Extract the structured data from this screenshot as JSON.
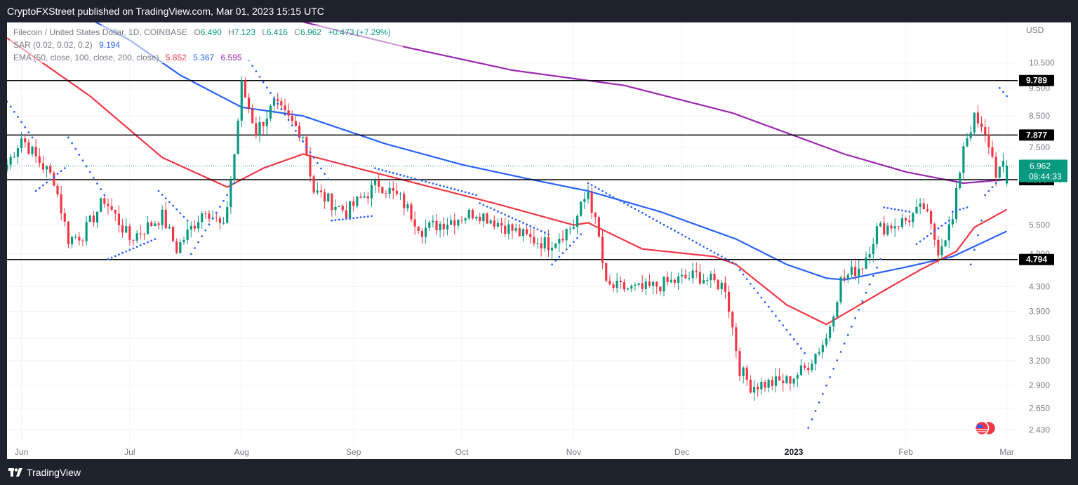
{
  "publisher": "CryptoFXStreet published on TradingView.com, Mar 01, 2023 15:15 UTC",
  "brand": "TradingView",
  "legend": {
    "symbol": "Filecoin / United States Dollar, 1D, COINBASE",
    "o_label": "O",
    "o_value": "6.490",
    "h_label": "H",
    "h_value": "7.123",
    "l_label": "L",
    "l_value": "6.416",
    "c_label": "C",
    "c_value": "6.962",
    "change": "+0.473 (+7.29%)",
    "sar_label": "SAR (0.02, 0.02, 0.2)",
    "sar_value": "9.194",
    "ema_label": "EMA (50, close, 100, close, 200, close)",
    "ema50_value": "5.852",
    "ema100_value": "5.367",
    "ema200_value": "6.595"
  },
  "colors": {
    "up": "#089981",
    "down": "#f23645",
    "ema50": "#f23645",
    "ema100": "#2962ff",
    "ema200": "#9c27b0",
    "sar": "#2962ff",
    "hline": "#000000",
    "text": "#131722",
    "axis_text": "#787b86"
  },
  "chart_data": {
    "type": "candlestick",
    "title": "Filecoin / United States Dollar, 1D, COINBASE",
    "currency": "USD",
    "y_scale": "log",
    "ylim": [
      2.3,
      12.0
    ],
    "x_start": "2022-05-28",
    "x_end": "2023-03-04",
    "x_ticks": [
      {
        "date": "2022-06-01",
        "label": "Jun",
        "bold": false
      },
      {
        "date": "2022-07-01",
        "label": "Jul",
        "bold": false
      },
      {
        "date": "2022-08-01",
        "label": "Aug",
        "bold": false
      },
      {
        "date": "2022-09-01",
        "label": "Sep",
        "bold": false
      },
      {
        "date": "2022-10-01",
        "label": "Oct",
        "bold": false
      },
      {
        "date": "2022-11-01",
        "label": "Nov",
        "bold": false
      },
      {
        "date": "2022-12-01",
        "label": "Dec",
        "bold": false
      },
      {
        "date": "2023-01-01",
        "label": "2023",
        "bold": true
      },
      {
        "date": "2023-02-01",
        "label": "Feb",
        "bold": false
      },
      {
        "date": "2023-03-01",
        "label": "Mar",
        "bold": false
      }
    ],
    "y_ticks": [
      "10.500",
      "9.500",
      "8.500",
      "7.500",
      "5.500",
      "4.900",
      "4.300",
      "3.900",
      "3.500",
      "3.200",
      "2.900",
      "2.650",
      "2.430"
    ],
    "horizontal_levels": [
      {
        "value": 9.789,
        "label": "9.789"
      },
      {
        "value": 7.877,
        "label": "7.877"
      },
      {
        "value": 6.59,
        "label": "6.590"
      },
      {
        "value": 4.794,
        "label": "4.794"
      }
    ],
    "last_price": {
      "value": 6.962,
      "label": "6.962",
      "countdown": "08:44:33"
    },
    "anchors": [
      {
        "date": "2022-05-28",
        "price": 7.0
      },
      {
        "date": "2022-06-01",
        "price": 7.8
      },
      {
        "date": "2022-06-05",
        "price": 7.2
      },
      {
        "date": "2022-06-10",
        "price": 6.6
      },
      {
        "date": "2022-06-14",
        "price": 5.2
      },
      {
        "date": "2022-06-18",
        "price": 5.3
      },
      {
        "date": "2022-06-24",
        "price": 6.1
      },
      {
        "date": "2022-07-01",
        "price": 5.2
      },
      {
        "date": "2022-07-10",
        "price": 5.7
      },
      {
        "date": "2022-07-14",
        "price": 5.0
      },
      {
        "date": "2022-07-22",
        "price": 5.9
      },
      {
        "date": "2022-07-27",
        "price": 5.4
      },
      {
        "date": "2022-07-30",
        "price": 7.3
      },
      {
        "date": "2022-08-01",
        "price": 9.6
      },
      {
        "date": "2022-08-05",
        "price": 8.0
      },
      {
        "date": "2022-08-10",
        "price": 8.9
      },
      {
        "date": "2022-08-18",
        "price": 7.9
      },
      {
        "date": "2022-08-21",
        "price": 6.3
      },
      {
        "date": "2022-08-30",
        "price": 5.8
      },
      {
        "date": "2022-09-08",
        "price": 6.5
      },
      {
        "date": "2022-09-14",
        "price": 6.1
      },
      {
        "date": "2022-09-20",
        "price": 5.4
      },
      {
        "date": "2022-10-05",
        "price": 5.8
      },
      {
        "date": "2022-10-20",
        "price": 5.2
      },
      {
        "date": "2022-10-25",
        "price": 5.1
      },
      {
        "date": "2022-11-01",
        "price": 5.5
      },
      {
        "date": "2022-11-05",
        "price": 6.3
      },
      {
        "date": "2022-11-08",
        "price": 5.2
      },
      {
        "date": "2022-11-10",
        "price": 4.3
      },
      {
        "date": "2022-11-20",
        "price": 4.25
      },
      {
        "date": "2022-12-05",
        "price": 4.5
      },
      {
        "date": "2022-12-13",
        "price": 4.3
      },
      {
        "date": "2022-12-17",
        "price": 3.1
      },
      {
        "date": "2022-12-20",
        "price": 2.9
      },
      {
        "date": "2022-12-30",
        "price": 2.95
      },
      {
        "date": "2023-01-04",
        "price": 3.1
      },
      {
        "date": "2023-01-10",
        "price": 3.5
      },
      {
        "date": "2023-01-14",
        "price": 4.4
      },
      {
        "date": "2023-01-20",
        "price": 4.7
      },
      {
        "date": "2023-01-24",
        "price": 5.4
      },
      {
        "date": "2023-02-01",
        "price": 5.6
      },
      {
        "date": "2023-02-06",
        "price": 5.9
      },
      {
        "date": "2023-02-10",
        "price": 5.0
      },
      {
        "date": "2023-02-14",
        "price": 5.6
      },
      {
        "date": "2023-02-17",
        "price": 7.6
      },
      {
        "date": "2023-02-20",
        "price": 8.4
      },
      {
        "date": "2023-02-24",
        "price": 7.6
      },
      {
        "date": "2023-02-26",
        "price": 6.8
      },
      {
        "date": "2023-03-01",
        "price": 6.962
      }
    ],
    "ema50": [
      {
        "date": "2022-05-28",
        "price": 11.6
      },
      {
        "date": "2022-06-20",
        "price": 9.2
      },
      {
        "date": "2022-07-10",
        "price": 7.2
      },
      {
        "date": "2022-07-28",
        "price": 6.4
      },
      {
        "date": "2022-08-07",
        "price": 6.9
      },
      {
        "date": "2022-08-18",
        "price": 7.3
      },
      {
        "date": "2022-09-10",
        "price": 6.7
      },
      {
        "date": "2022-10-10",
        "price": 6.0
      },
      {
        "date": "2022-11-01",
        "price": 5.5
      },
      {
        "date": "2022-11-05",
        "price": 5.55
      },
      {
        "date": "2022-11-20",
        "price": 5.0
      },
      {
        "date": "2022-12-10",
        "price": 4.85
      },
      {
        "date": "2022-12-16",
        "price": 4.7
      },
      {
        "date": "2022-12-30",
        "price": 4.0
      },
      {
        "date": "2023-01-10",
        "price": 3.7
      },
      {
        "date": "2023-01-25",
        "price": 4.2
      },
      {
        "date": "2023-02-05",
        "price": 4.6
      },
      {
        "date": "2023-02-15",
        "price": 4.95
      },
      {
        "date": "2023-02-20",
        "price": 5.45
      },
      {
        "date": "2023-03-01",
        "price": 5.852
      }
    ],
    "ema100": [
      {
        "date": "2022-06-10",
        "price": 13.5
      },
      {
        "date": "2022-07-01",
        "price": 11.5
      },
      {
        "date": "2022-07-15",
        "price": 10.0
      },
      {
        "date": "2022-08-01",
        "price": 8.8
      },
      {
        "date": "2022-08-18",
        "price": 8.5
      },
      {
        "date": "2022-09-10",
        "price": 7.6
      },
      {
        "date": "2022-10-01",
        "price": 7.0
      },
      {
        "date": "2022-10-20",
        "price": 6.6
      },
      {
        "date": "2022-11-05",
        "price": 6.3
      },
      {
        "date": "2022-11-25",
        "price": 5.8
      },
      {
        "date": "2022-12-16",
        "price": 5.2
      },
      {
        "date": "2022-12-30",
        "price": 4.7
      },
      {
        "date": "2023-01-10",
        "price": 4.45
      },
      {
        "date": "2023-01-15",
        "price": 4.42
      },
      {
        "date": "2023-02-01",
        "price": 4.65
      },
      {
        "date": "2023-02-14",
        "price": 4.85
      },
      {
        "date": "2023-02-20",
        "price": 5.05
      },
      {
        "date": "2023-03-01",
        "price": 5.367
      }
    ],
    "ema200": [
      {
        "date": "2022-07-16",
        "price": 14.5
      },
      {
        "date": "2022-08-15",
        "price": 12.5
      },
      {
        "date": "2022-09-15",
        "price": 11.2
      },
      {
        "date": "2022-10-15",
        "price": 10.2
      },
      {
        "date": "2022-11-15",
        "price": 9.6
      },
      {
        "date": "2022-12-15",
        "price": 8.6
      },
      {
        "date": "2023-01-15",
        "price": 7.3
      },
      {
        "date": "2023-02-01",
        "price": 6.8
      },
      {
        "date": "2023-02-17",
        "price": 6.5
      },
      {
        "date": "2023-03-01",
        "price": 6.595
      }
    ],
    "sar": [
      {
        "start": "2022-05-28",
        "end": "2022-06-04",
        "from": 9.0,
        "to": 7.8
      },
      {
        "start": "2022-06-05",
        "end": "2022-06-13",
        "from": 6.3,
        "to": 6.9
      },
      {
        "start": "2022-06-14",
        "end": "2022-06-24",
        "from": 7.8,
        "to": 6.2
      },
      {
        "start": "2022-06-25",
        "end": "2022-07-08",
        "from": 4.8,
        "to": 5.2
      },
      {
        "start": "2022-07-09",
        "end": "2022-07-17",
        "from": 6.3,
        "to": 5.6
      },
      {
        "start": "2022-07-18",
        "end": "2022-07-30",
        "from": 4.9,
        "to": 6.5
      },
      {
        "start": "2022-08-03",
        "end": "2022-08-25",
        "from": 10.6,
        "to": 6.6
      },
      {
        "start": "2022-08-26",
        "end": "2022-09-06",
        "from": 5.6,
        "to": 5.7
      },
      {
        "start": "2022-09-07",
        "end": "2022-10-05",
        "from": 6.9,
        "to": 6.2
      },
      {
        "start": "2022-10-06",
        "end": "2022-10-25",
        "from": 6.0,
        "to": 5.3
      },
      {
        "start": "2022-10-26",
        "end": "2022-11-03",
        "from": 4.7,
        "to": 5.3
      },
      {
        "start": "2022-11-05",
        "end": "2022-12-16",
        "from": 6.5,
        "to": 4.7
      },
      {
        "start": "2022-12-17",
        "end": "2023-01-04",
        "from": 4.6,
        "to": 3.3
      },
      {
        "start": "2023-01-05",
        "end": "2023-01-25",
        "from": 2.45,
        "to": 4.8
      },
      {
        "start": "2023-01-26",
        "end": "2023-02-02",
        "from": 5.9,
        "to": 5.8
      },
      {
        "start": "2023-02-04",
        "end": "2023-02-13",
        "from": 5.1,
        "to": 5.6
      },
      {
        "start": "2023-02-14",
        "end": "2023-02-18",
        "from": 5.8,
        "to": 5.9
      },
      {
        "start": "2023-02-19",
        "end": "2023-02-22",
        "from": 4.7,
        "to": 5.6
      },
      {
        "start": "2023-02-23",
        "end": "2023-02-26",
        "from": 6.2,
        "to": 6.5
      },
      {
        "start": "2023-02-27",
        "end": "2023-03-01",
        "from": 9.5,
        "to": 9.2
      }
    ]
  }
}
